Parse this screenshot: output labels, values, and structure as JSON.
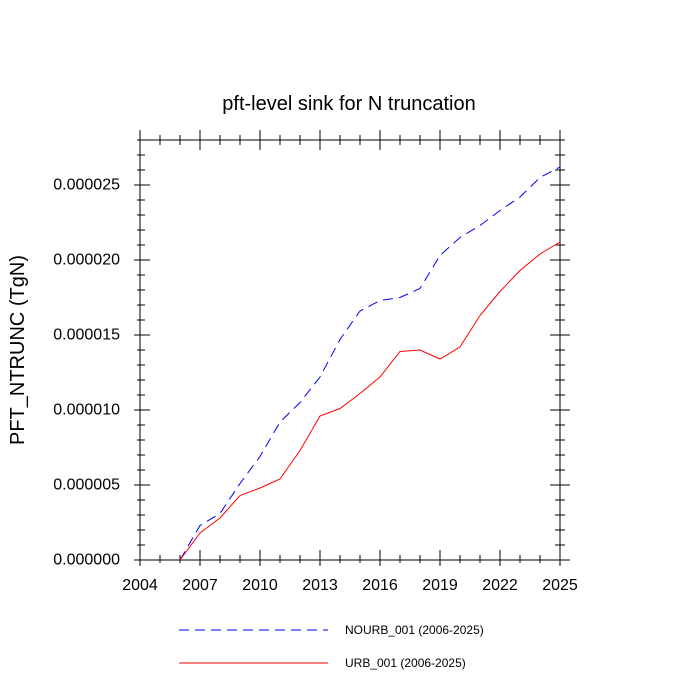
{
  "chart_data": {
    "type": "line",
    "title": "pft-level sink for N truncation",
    "xlabel": "",
    "ylabel": "PFT_NTRUNC  (TgN)",
    "xlim": [
      2004,
      2025
    ],
    "ylim": [
      0,
      2.8e-05
    ],
    "xticks": [
      2004,
      2007,
      2010,
      2013,
      2016,
      2019,
      2022,
      2025
    ],
    "xtick_labels": [
      "2004",
      "2007",
      "2010",
      "2013",
      "2016",
      "2019",
      "2022",
      "2025"
    ],
    "yticks": [
      0,
      5e-06,
      1e-05,
      1.5e-05,
      2e-05,
      2.5e-05
    ],
    "ytick_labels": [
      "0.000000",
      "0.000005",
      "0.000010",
      "0.000015",
      "0.000020",
      "0.000025"
    ],
    "grid": false,
    "legend_placement": "bottom",
    "x": [
      2006,
      2007,
      2008,
      2009,
      2010,
      2011,
      2012,
      2013,
      2014,
      2015,
      2016,
      2017,
      2018,
      2019,
      2020,
      2021,
      2022,
      2023,
      2024,
      2025
    ],
    "series": [
      {
        "name": "NOURB_001 (2006-2025)",
        "color": "#0000ff",
        "dash": "dashed",
        "values": [
          0.0,
          2.3e-06,
          3.1e-06,
          5.1e-06,
          6.9e-06,
          9.2e-06,
          1.05e-05,
          1.22e-05,
          1.47e-05,
          1.66e-05,
          1.73e-05,
          1.75e-05,
          1.81e-05,
          2.03e-05,
          2.15e-05,
          2.23e-05,
          2.33e-05,
          2.42e-05,
          2.55e-05,
          2.62e-05
        ]
      },
      {
        "name": "URB_001 (2006-2025)",
        "color": "#ff0000",
        "dash": "solid",
        "values": [
          0.0,
          1.8e-06,
          2.8e-06,
          4.3e-06,
          4.8e-06,
          5.4e-06,
          7.3e-06,
          9.6e-06,
          1.01e-05,
          1.11e-05,
          1.22e-05,
          1.39e-05,
          1.4e-05,
          1.34e-05,
          1.42e-05,
          1.63e-05,
          1.79e-05,
          1.93e-05,
          2.04e-05,
          2.12e-05
        ]
      }
    ]
  }
}
